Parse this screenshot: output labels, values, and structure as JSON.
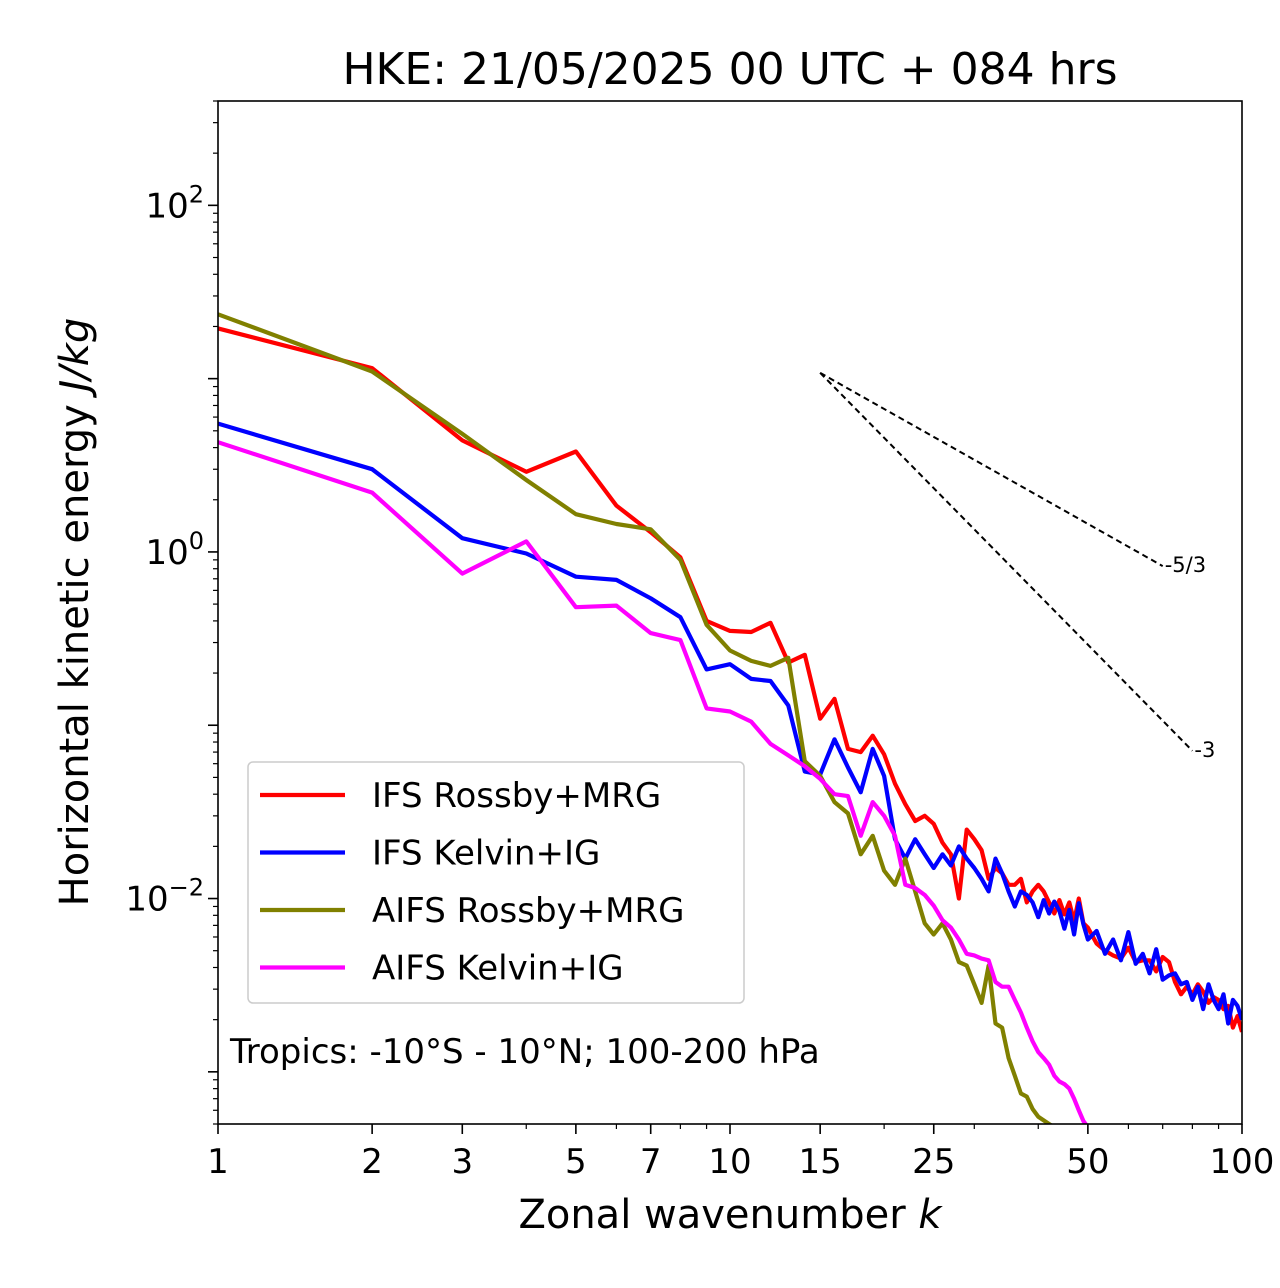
{
  "chart_data": {
    "type": "line",
    "title": "HKE: 21/05/2025 00 UTC + 084 hrs",
    "xlabel": "Zonal wavenumber",
    "xlabel_var": "k",
    "ylabel": "Horizontal kinetic energy",
    "ylabel_unit": "J/kg",
    "xscale": "log",
    "yscale": "log",
    "xlim": [
      1,
      100
    ],
    "ylim": [
      0.0005,
      400
    ],
    "x_ticks": [
      {
        "value": 1,
        "label": "1"
      },
      {
        "value": 2,
        "label": "2"
      },
      {
        "value": 3,
        "label": "3"
      },
      {
        "value": 5,
        "label": "5"
      },
      {
        "value": 7,
        "label": "7"
      },
      {
        "value": 10,
        "label": "10"
      },
      {
        "value": 15,
        "label": "15"
      },
      {
        "value": 25,
        "label": "25"
      },
      {
        "value": 50,
        "label": "50"
      },
      {
        "value": 100,
        "label": "100"
      }
    ],
    "y_ticks": [
      {
        "value": 100,
        "base": "10",
        "exp": "2"
      },
      {
        "value": 1,
        "base": "10",
        "exp": "0"
      },
      {
        "value": 0.01,
        "base": "10",
        "exp": "−2"
      }
    ],
    "annotation": "Tropics: -10°S - 10°N; 100-200 hPa",
    "legend_position": "lower-left",
    "reference_slopes": [
      {
        "label": "-5/3",
        "slope": -1.6667,
        "x_start": 15,
        "y_start": 10.8,
        "x_end": 70
      },
      {
        "label": "-3",
        "slope": -3,
        "x_start": 15,
        "y_start": 10.8,
        "x_end": 80
      }
    ],
    "series": [
      {
        "name": "IFS Rossby+MRG",
        "color": "#ff0000",
        "points": [
          [
            1,
            19.5
          ],
          [
            2,
            11.5
          ],
          [
            3,
            4.4
          ],
          [
            4,
            2.9
          ],
          [
            5,
            3.8
          ],
          [
            6,
            1.85
          ],
          [
            7,
            1.3
          ],
          [
            8,
            0.93
          ],
          [
            9,
            0.4
          ],
          [
            10,
            0.35
          ],
          [
            11,
            0.345
          ],
          [
            12,
            0.39
          ],
          [
            13,
            0.23
          ],
          [
            14,
            0.255
          ],
          [
            15,
            0.109
          ],
          [
            16,
            0.142
          ],
          [
            17,
            0.073
          ],
          [
            18,
            0.07
          ],
          [
            19,
            0.087
          ],
          [
            20,
            0.068
          ],
          [
            21,
            0.046
          ],
          [
            22,
            0.035
          ],
          [
            23,
            0.028
          ],
          [
            24,
            0.03
          ],
          [
            25,
            0.027
          ],
          [
            26,
            0.021
          ],
          [
            27,
            0.018
          ],
          [
            28,
            0.01
          ],
          [
            29,
            0.025
          ],
          [
            30,
            0.022
          ],
          [
            31,
            0.019
          ],
          [
            32,
            0.013
          ],
          [
            33,
            0.015
          ],
          [
            34,
            0.014
          ],
          [
            35,
            0.012
          ],
          [
            36,
            0.012
          ],
          [
            37,
            0.013
          ],
          [
            38,
            0.0095
          ],
          [
            39,
            0.011
          ],
          [
            40,
            0.012
          ],
          [
            41,
            0.011
          ],
          [
            42,
            0.0095
          ],
          [
            43,
            0.0082
          ],
          [
            44,
            0.0098
          ],
          [
            45,
            0.0081
          ],
          [
            46,
            0.0095
          ],
          [
            47,
            0.0074
          ],
          [
            48,
            0.01
          ],
          [
            49,
            0.0072
          ],
          [
            50,
            0.0068
          ],
          [
            52,
            0.0055
          ],
          [
            54,
            0.005
          ],
          [
            56,
            0.0047
          ],
          [
            58,
            0.0045
          ],
          [
            60,
            0.0052
          ],
          [
            62,
            0.0043
          ],
          [
            64,
            0.0044
          ],
          [
            66,
            0.0044
          ],
          [
            68,
            0.0038
          ],
          [
            70,
            0.0046
          ],
          [
            72,
            0.0043
          ],
          [
            74,
            0.0033
          ],
          [
            76,
            0.0028
          ],
          [
            78,
            0.0031
          ],
          [
            80,
            0.0028
          ],
          [
            82,
            0.0032
          ],
          [
            84,
            0.0029
          ],
          [
            86,
            0.0025
          ],
          [
            88,
            0.0027
          ],
          [
            90,
            0.0026
          ],
          [
            92,
            0.0023
          ],
          [
            94,
            0.0024
          ],
          [
            96,
            0.0018
          ],
          [
            98,
            0.0021
          ],
          [
            100,
            0.0017
          ]
        ]
      },
      {
        "name": "IFS Kelvin+IG",
        "color": "#0000ff",
        "points": [
          [
            1,
            5.5
          ],
          [
            2,
            3.0
          ],
          [
            3,
            1.2
          ],
          [
            4,
            0.98
          ],
          [
            5,
            0.72
          ],
          [
            6,
            0.69
          ],
          [
            7,
            0.54
          ],
          [
            8,
            0.42
          ],
          [
            9,
            0.21
          ],
          [
            10,
            0.225
          ],
          [
            11,
            0.185
          ],
          [
            12,
            0.18
          ],
          [
            13,
            0.13
          ],
          [
            14,
            0.054
          ],
          [
            15,
            0.052
          ],
          [
            16,
            0.083
          ],
          [
            17,
            0.057
          ],
          [
            18,
            0.041
          ],
          [
            19,
            0.073
          ],
          [
            20,
            0.051
          ],
          [
            21,
            0.022
          ],
          [
            22,
            0.017
          ],
          [
            23,
            0.022
          ],
          [
            24,
            0.018
          ],
          [
            25,
            0.015
          ],
          [
            26,
            0.018
          ],
          [
            27,
            0.0155
          ],
          [
            28,
            0.02
          ],
          [
            29,
            0.017
          ],
          [
            30,
            0.015
          ],
          [
            31,
            0.013
          ],
          [
            32,
            0.011
          ],
          [
            33,
            0.017
          ],
          [
            34,
            0.014
          ],
          [
            35,
            0.011
          ],
          [
            36,
            0.009
          ],
          [
            37,
            0.011
          ],
          [
            38,
            0.0105
          ],
          [
            39,
            0.0095
          ],
          [
            40,
            0.0078
          ],
          [
            41,
            0.0098
          ],
          [
            42,
            0.0082
          ],
          [
            43,
            0.0096
          ],
          [
            44,
            0.0085
          ],
          [
            45,
            0.0067
          ],
          [
            46,
            0.0086
          ],
          [
            47,
            0.0062
          ],
          [
            48,
            0.0094
          ],
          [
            49,
            0.0071
          ],
          [
            50,
            0.0058
          ],
          [
            52,
            0.0065
          ],
          [
            54,
            0.0048
          ],
          [
            56,
            0.0058
          ],
          [
            58,
            0.0044
          ],
          [
            60,
            0.0064
          ],
          [
            62,
            0.0042
          ],
          [
            64,
            0.0048
          ],
          [
            66,
            0.0037
          ],
          [
            68,
            0.0051
          ],
          [
            70,
            0.0034
          ],
          [
            72,
            0.0036
          ],
          [
            74,
            0.0037
          ],
          [
            76,
            0.0032
          ],
          [
            78,
            0.0033
          ],
          [
            80,
            0.0026
          ],
          [
            82,
            0.0031
          ],
          [
            84,
            0.0023
          ],
          [
            86,
            0.0032
          ],
          [
            88,
            0.0026
          ],
          [
            90,
            0.0023
          ],
          [
            92,
            0.0028
          ],
          [
            94,
            0.0019
          ],
          [
            96,
            0.0026
          ],
          [
            98,
            0.0024
          ],
          [
            100,
            0.002
          ]
        ]
      },
      {
        "name": "AIFS Rossby+MRG",
        "color": "#808000",
        "points": [
          [
            1,
            23.5
          ],
          [
            2,
            11.0
          ],
          [
            3,
            4.8
          ],
          [
            4,
            2.6
          ],
          [
            5,
            1.65
          ],
          [
            6,
            1.45
          ],
          [
            7,
            1.35
          ],
          [
            8,
            0.9
          ],
          [
            9,
            0.38
          ],
          [
            10,
            0.27
          ],
          [
            11,
            0.235
          ],
          [
            12,
            0.22
          ],
          [
            13,
            0.245
          ],
          [
            14,
            0.062
          ],
          [
            15,
            0.051
          ],
          [
            16,
            0.036
          ],
          [
            17,
            0.031
          ],
          [
            18,
            0.018
          ],
          [
            19,
            0.023
          ],
          [
            20,
            0.0145
          ],
          [
            21,
            0.012
          ],
          [
            22,
            0.017
          ],
          [
            23,
            0.011
          ],
          [
            24,
            0.0072
          ],
          [
            25,
            0.0062
          ],
          [
            26,
            0.0072
          ],
          [
            27,
            0.0058
          ],
          [
            28,
            0.0043
          ],
          [
            29,
            0.0041
          ],
          [
            30,
            0.0032
          ],
          [
            31,
            0.0025
          ],
          [
            32,
            0.0041
          ],
          [
            33,
            0.0019
          ],
          [
            34,
            0.0018
          ],
          [
            35,
            0.0012
          ],
          [
            36,
            0.00095
          ],
          [
            37,
            0.00075
          ],
          [
            38,
            0.00072
          ],
          [
            39,
            0.00061
          ],
          [
            40,
            0.00055
          ],
          [
            42,
            0.0005
          ],
          [
            44,
            0.00046
          ],
          [
            46,
            0.00043
          ],
          [
            48,
            0.00042
          ]
        ]
      },
      {
        "name": "AIFS Kelvin+IG",
        "color": "#ff00ff",
        "points": [
          [
            1,
            4.3
          ],
          [
            2,
            2.2
          ],
          [
            3,
            0.75
          ],
          [
            4,
            1.15
          ],
          [
            5,
            0.48
          ],
          [
            6,
            0.49
          ],
          [
            7,
            0.34
          ],
          [
            8,
            0.31
          ],
          [
            9,
            0.125
          ],
          [
            10,
            0.12
          ],
          [
            11,
            0.105
          ],
          [
            12,
            0.078
          ],
          [
            13,
            0.067
          ],
          [
            14,
            0.058
          ],
          [
            15,
            0.049
          ],
          [
            16,
            0.04
          ],
          [
            17,
            0.039
          ],
          [
            18,
            0.023
          ],
          [
            19,
            0.036
          ],
          [
            20,
            0.03
          ],
          [
            21,
            0.023
          ],
          [
            22,
            0.012
          ],
          [
            23,
            0.0115
          ],
          [
            24,
            0.0105
          ],
          [
            25,
            0.0091
          ],
          [
            26,
            0.0075
          ],
          [
            27,
            0.0068
          ],
          [
            28,
            0.0058
          ],
          [
            29,
            0.0048
          ],
          [
            30,
            0.0047
          ],
          [
            31,
            0.0045
          ],
          [
            32,
            0.0044
          ],
          [
            33,
            0.0033
          ],
          [
            34,
            0.0031
          ],
          [
            35,
            0.0031
          ],
          [
            36,
            0.0026
          ],
          [
            37,
            0.0022
          ],
          [
            38,
            0.0018
          ],
          [
            39,
            0.0015
          ],
          [
            40,
            0.0013
          ],
          [
            41,
            0.0012
          ],
          [
            42,
            0.0011
          ],
          [
            43,
            0.00095
          ],
          [
            44,
            0.00088
          ],
          [
            45,
            0.00085
          ],
          [
            46,
            0.0008
          ],
          [
            47,
            0.0007
          ],
          [
            48,
            0.0006
          ],
          [
            49,
            0.00052
          ],
          [
            50,
            0.00048
          ],
          [
            52,
            0.00045
          ],
          [
            54,
            0.00043
          ],
          [
            56,
            0.00042
          ]
        ]
      }
    ]
  }
}
